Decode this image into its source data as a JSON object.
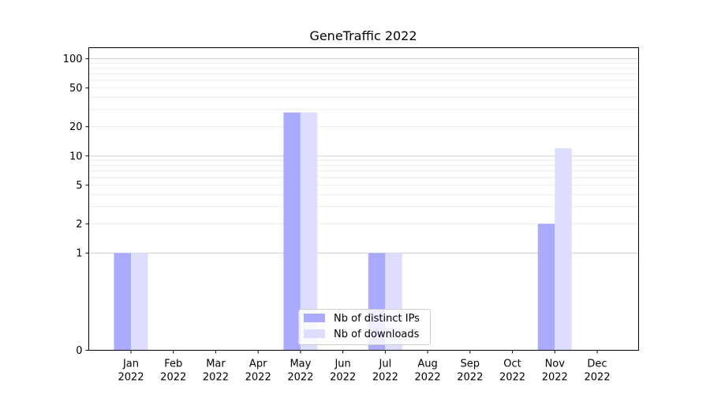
{
  "chart_data": {
    "type": "bar",
    "title": "GeneTraffic 2022",
    "xlabel": "",
    "ylabel": "",
    "y_scale": "symlog",
    "ylim": [
      0,
      130
    ],
    "y_ticks": [
      0,
      1,
      2,
      5,
      10,
      20,
      50,
      100
    ],
    "categories": [
      {
        "month": "Jan",
        "year": "2022"
      },
      {
        "month": "Feb",
        "year": "2022"
      },
      {
        "month": "Mar",
        "year": "2022"
      },
      {
        "month": "Apr",
        "year": "2022"
      },
      {
        "month": "May",
        "year": "2022"
      },
      {
        "month": "Jun",
        "year": "2022"
      },
      {
        "month": "Jul",
        "year": "2022"
      },
      {
        "month": "Aug",
        "year": "2022"
      },
      {
        "month": "Sep",
        "year": "2022"
      },
      {
        "month": "Oct",
        "year": "2022"
      },
      {
        "month": "Nov",
        "year": "2022"
      },
      {
        "month": "Dec",
        "year": "2022"
      }
    ],
    "series": [
      {
        "name": "Nb of distinct IPs",
        "color": "#aaaaff",
        "values": [
          1,
          0,
          0,
          0,
          28,
          0,
          1,
          0,
          0,
          0,
          2,
          0
        ]
      },
      {
        "name": "Nb of downloads",
        "color": "#ddddff",
        "values": [
          1,
          0,
          0,
          0,
          28,
          0,
          1,
          0,
          0,
          0,
          12,
          0
        ]
      }
    ],
    "grid": true,
    "legend_position": "lower center"
  }
}
